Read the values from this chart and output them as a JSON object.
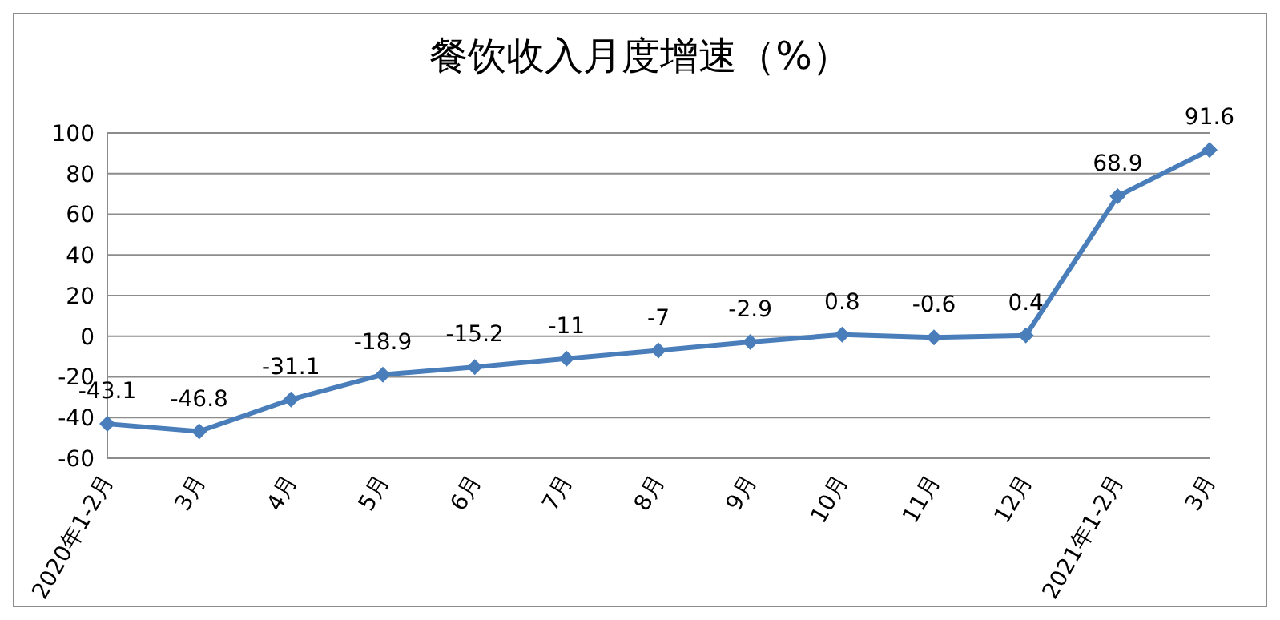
{
  "chart_data": {
    "type": "line",
    "title": "餐饮收入月度增速（%）",
    "categories": [
      "2020年1-2月",
      "3月",
      "4月",
      "5月",
      "6月",
      "7月",
      "8月",
      "9月",
      "10月",
      "11月",
      "12月",
      "2021年1-2月",
      "3月"
    ],
    "series": [
      {
        "color": "#4a7ebb",
        "values": [
          -43.1,
          -46.8,
          -31.1,
          -18.9,
          -15.2,
          -11,
          -7,
          -2.9,
          0.8,
          -0.6,
          0.4,
          68.9,
          91.6
        ]
      }
    ],
    "ylim": [
      -60,
      100
    ],
    "yticks": [
      -60,
      -40,
      -20,
      0,
      20,
      40,
      60,
      80,
      100
    ],
    "grid": "y",
    "marker": "diamond",
    "line_style": "solid",
    "data_labels": true,
    "legend": false
  }
}
